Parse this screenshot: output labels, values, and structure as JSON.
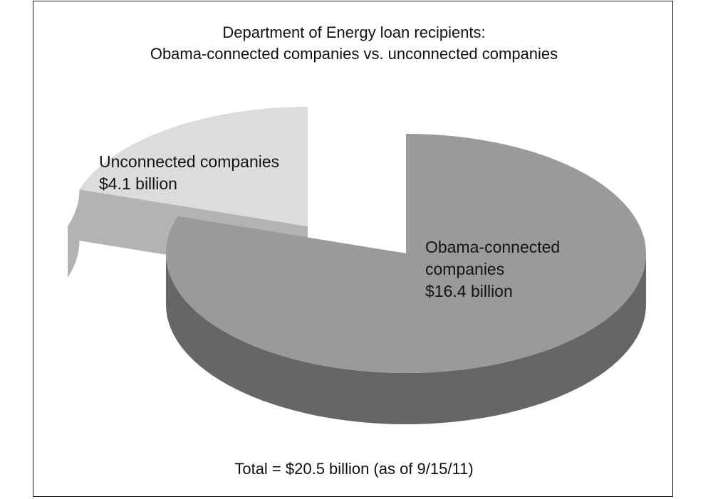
{
  "chart_data": {
    "type": "pie",
    "style": "3d-exploded",
    "title_lines": [
      "Department of Energy loan recipients:",
      "Obama-connected companies vs. unconnected companies"
    ],
    "unit": "$ billion",
    "slices": [
      {
        "name": "Obama-connected companies",
        "value": 16.4,
        "label_lines": [
          "Obama-connected",
          "companies",
          "$16.4 billion"
        ],
        "top_color": "#9a9a9a",
        "side_color": "#666666"
      },
      {
        "name": "Unconnected companies",
        "value": 4.1,
        "label_lines": [
          "Unconnected companies",
          "$4.1 billion"
        ],
        "top_color": "#dcdcdc",
        "side_color": "#b3b3b3"
      }
    ],
    "footnote": "Total = $20.5 billion (as of 9/15/11)"
  }
}
